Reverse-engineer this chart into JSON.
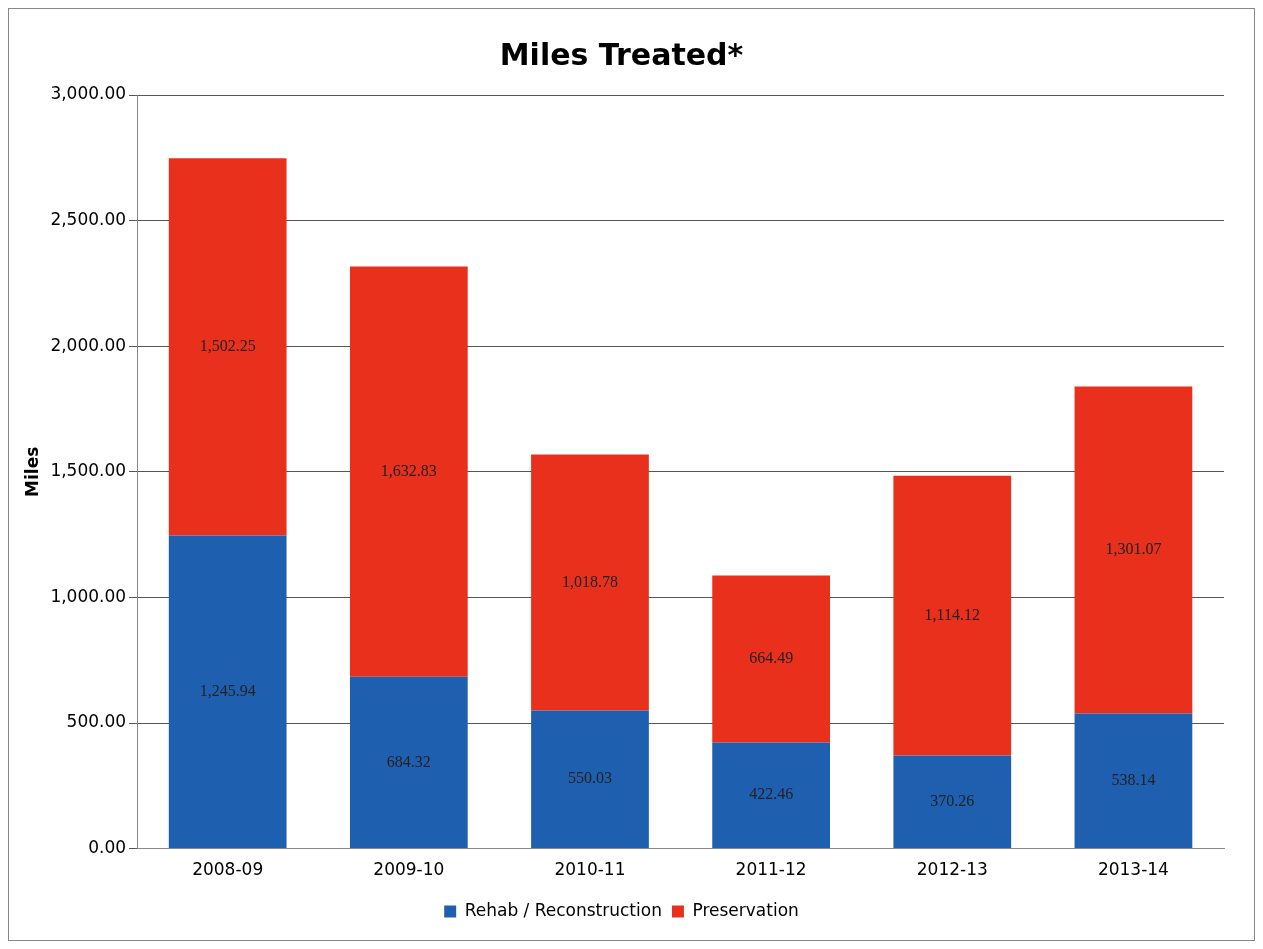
{
  "chart_data": {
    "type": "bar",
    "title": "Miles Treated*",
    "ylabel": "Miles",
    "categories": [
      "2008-09",
      "2009-10",
      "2010-11",
      "2011-12",
      "2012-13",
      "2013-14"
    ],
    "stacked": true,
    "series": [
      {
        "name": "Rehab / Reconstruction",
        "color": "#1f5fb0",
        "values": [
          1245.94,
          684.32,
          550.03,
          422.46,
          370.26,
          538.14
        ],
        "value_labels": [
          "1,245.94",
          "684.32",
          "550.03",
          "422.46",
          "370.26",
          "538.14"
        ]
      },
      {
        "name": "Preservation",
        "color": "#e8301c",
        "values": [
          1502.25,
          1632.83,
          1018.78,
          664.49,
          1114.12,
          1301.07
        ],
        "value_labels": [
          "1,502.25",
          "1,632.83",
          "1,018.78",
          "664.49",
          "1,114.12",
          "1,301.07"
        ]
      }
    ],
    "ylim": [
      0,
      3000
    ],
    "yticks": [
      {
        "value": 0,
        "label": "0.00"
      },
      {
        "value": 500,
        "label": "500.00"
      },
      {
        "value": 1000,
        "label": "1,000.00"
      },
      {
        "value": 1500,
        "label": "1,500.00"
      },
      {
        "value": 2000,
        "label": "2,000.00"
      },
      {
        "value": 2500,
        "label": "2,500.00"
      },
      {
        "value": 3000,
        "label": "3,000.00"
      }
    ],
    "grid": "y",
    "legend": "bottom"
  }
}
